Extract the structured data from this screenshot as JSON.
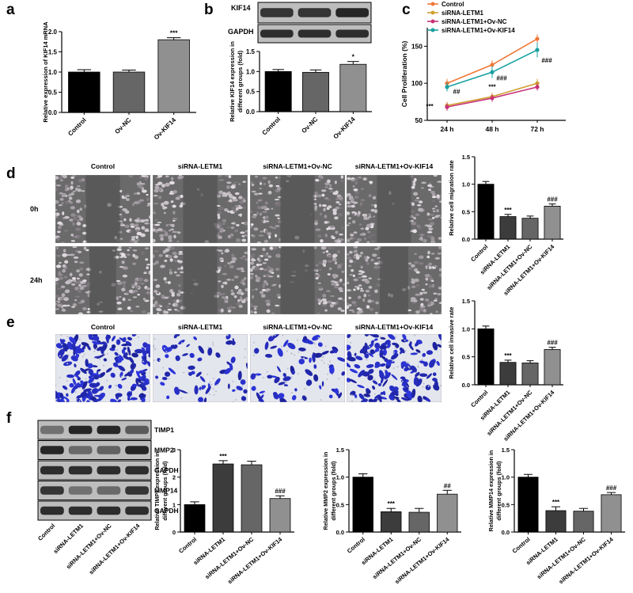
{
  "figure": {
    "panel_labels": {
      "a": "a",
      "b": "b",
      "c": "c",
      "d": "d",
      "e": "e",
      "f": "f"
    },
    "blot_b": {
      "labels": [
        "KIF14",
        "GAPDH"
      ]
    },
    "blot_f": {
      "labels": [
        "TIMP1",
        "MMP2",
        "GAPDH",
        "MMP14",
        "GAPDH"
      ],
      "lanes": [
        "Control",
        "siRNA-LETM1",
        "siRNA-LETM1+Ov-NC",
        "siRNA-LETM1+Ov-KIF14"
      ]
    },
    "micrographs": {
      "columns": [
        "Control",
        "siRNA-LETM1",
        "siRNA-LETM1+Ov-NC",
        "siRNA-LETM1+Ov-KIF14"
      ],
      "rows_d": [
        "0h",
        "24h"
      ]
    },
    "colors": {
      "control": "#000000",
      "group2": "#3c3c3c",
      "group3": "#666666",
      "group4": "#909090",
      "line_control": "#f07838",
      "line_si": "#d0a030",
      "line_nc": "#c83278",
      "line_kif": "#18a0a0"
    }
  },
  "chart_data": [
    {
      "id": "a",
      "type": "bar",
      "categories": [
        "Control",
        "Ov-NC",
        "Ov-KIF14"
      ],
      "values": [
        1.0,
        1.0,
        1.8
      ],
      "errors": [
        0.06,
        0.05,
        0.05
      ],
      "annotations": [
        "",
        "",
        "***"
      ],
      "ylabel": "Relative expression of KIF14 mRNA",
      "ylim": [
        0,
        2.0
      ],
      "yticks": [
        "0.0",
        "0.5",
        "1.0",
        "1.5",
        "2.0"
      ]
    },
    {
      "id": "b",
      "type": "bar",
      "categories": [
        "Control",
        "Ov-NC",
        "Ov-KIF14"
      ],
      "values": [
        1.0,
        0.98,
        1.18
      ],
      "errors": [
        0.05,
        0.06,
        0.07
      ],
      "annotations": [
        "",
        "",
        "*"
      ],
      "ylabel": "Relative KIF14 expression in different groups (fold)",
      "ylim": [
        0,
        1.5
      ],
      "yticks": [
        "0.0",
        "0.5",
        "1.0",
        "1.5"
      ]
    },
    {
      "id": "c",
      "type": "line",
      "categories": [
        "24 h",
        "48 h",
        "72 h"
      ],
      "ylabel": "Cell Proliferation (%)",
      "ylim": [
        50,
        175
      ],
      "yticks": [
        "50",
        "100",
        "150"
      ],
      "series": [
        {
          "name": "Control",
          "values": [
            100,
            125,
            160
          ],
          "errors": [
            6,
            6,
            6
          ]
        },
        {
          "name": "siRNA-LETM1",
          "values": [
            70,
            82,
            100
          ],
          "errors": [
            5,
            5,
            6
          ]
        },
        {
          "name": "siRNA-LETM1+Ov-NC",
          "values": [
            68,
            80,
            95
          ],
          "errors": [
            5,
            5,
            5
          ]
        },
        {
          "name": "siRNA-LETM1+Ov-KIF14",
          "values": [
            95,
            115,
            145
          ],
          "errors": [
            6,
            8,
            10
          ]
        }
      ],
      "annotations": [
        {
          "text": "***",
          "x": "24 h",
          "y": 66
        },
        {
          "text": "##",
          "x": "24 h",
          "y": 86
        },
        {
          "text": "***",
          "x": "48 h",
          "y": 92
        },
        {
          "text": "###",
          "x": "48 h",
          "y": 104
        },
        {
          "text": "###",
          "x": "72 h",
          "y": 128
        }
      ],
      "legend_placement": "top-left"
    },
    {
      "id": "d",
      "type": "bar",
      "categories": [
        "Control",
        "siRNA-LETM1",
        "siRNA-LETM1+Ov-NC",
        "siRNA-LETM1+Ov-KIF14"
      ],
      "values": [
        1.0,
        0.41,
        0.38,
        0.6
      ],
      "errors": [
        0.05,
        0.04,
        0.04,
        0.04
      ],
      "annotations": [
        "",
        "***",
        "",
        "###"
      ],
      "ylabel": "Relative cell migration rate",
      "ylim": [
        0,
        1.5
      ],
      "yticks": [
        "0.0",
        "0.5",
        "1.0",
        "1.5"
      ]
    },
    {
      "id": "e",
      "type": "bar",
      "categories": [
        "Control",
        "siRNA-LETM1",
        "siRNA-LETM1+Ov-NC",
        "siRNA-LETM1+Ov-KIF14"
      ],
      "values": [
        1.0,
        0.4,
        0.39,
        0.63
      ],
      "errors": [
        0.05,
        0.04,
        0.04,
        0.04
      ],
      "annotations": [
        "",
        "***",
        "",
        "###"
      ],
      "ylabel": "Relative cell invasive rate",
      "ylim": [
        0,
        1.5
      ],
      "yticks": [
        "0.0",
        "0.5",
        "1.0",
        "1.5"
      ]
    },
    {
      "id": "f1",
      "type": "bar",
      "categories": [
        "Control",
        "siRNA-LETM1",
        "siRNA-LETM1+Ov-NC",
        "siRNA-LETM1+Ov-KIF14"
      ],
      "values": [
        1.0,
        2.48,
        2.45,
        1.22
      ],
      "errors": [
        0.1,
        0.12,
        0.13,
        0.1
      ],
      "annotations": [
        "",
        "***",
        "",
        "###"
      ],
      "ylabel": "Relative TIMP1 expression in different groups (fold)",
      "ylim": [
        0,
        3
      ],
      "yticks": [
        "0",
        "1",
        "2",
        "3"
      ]
    },
    {
      "id": "f2",
      "type": "bar",
      "categories": [
        "Control",
        "siRNA-LETM1",
        "siRNA-LETM1+Ov-NC",
        "siRNA-LETM1+Ov-KIF14"
      ],
      "values": [
        1.0,
        0.37,
        0.36,
        0.69
      ],
      "errors": [
        0.06,
        0.06,
        0.07,
        0.07
      ],
      "annotations": [
        "",
        "***",
        "",
        "##"
      ],
      "ylabel": "Relative MMP2 expression in different groups (fold)",
      "ylim": [
        0,
        1.5
      ],
      "yticks": [
        "0.0",
        "0.5",
        "1.0",
        "1.5"
      ]
    },
    {
      "id": "f3",
      "type": "bar",
      "categories": [
        "Control",
        "siRNA-LETM1",
        "siRNA-LETM1+Ov-NC",
        "siRNA-LETM1+Ov-KIF14"
      ],
      "values": [
        1.0,
        0.39,
        0.38,
        0.68
      ],
      "errors": [
        0.05,
        0.07,
        0.05,
        0.04
      ],
      "annotations": [
        "",
        "***",
        "",
        "###"
      ],
      "ylabel": "Relative MMP14 expression in different groups (fold)",
      "ylim": [
        0,
        1.5
      ],
      "yticks": [
        "0.0",
        "0.5",
        "1.0",
        "1.5"
      ]
    }
  ]
}
